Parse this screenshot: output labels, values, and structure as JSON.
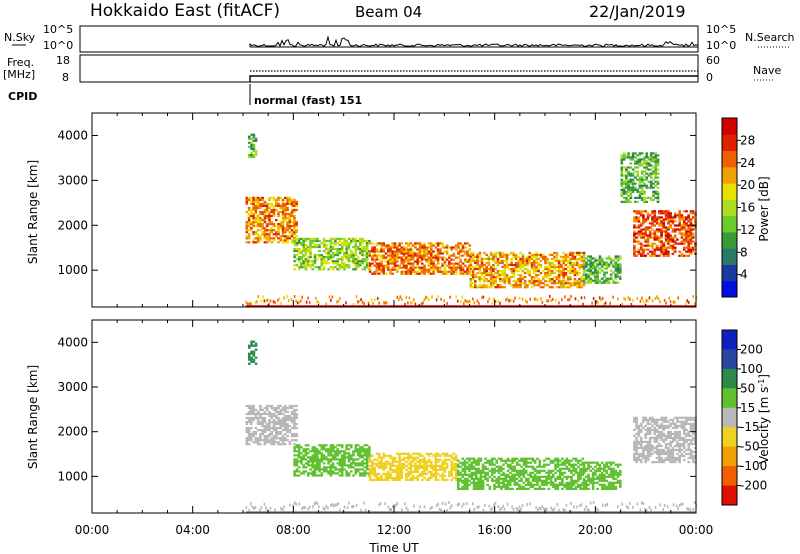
{
  "header": {
    "station": "Hokkaido East (fitACF)",
    "beam": "Beam 04",
    "date": "22/Jan/2019"
  },
  "param_panels": {
    "nsky_label": "N.Sky",
    "freq_label": "Freq.",
    "freq_unit": "[MHz]",
    "cpid_label": "CPID",
    "nsearch_label": "N.Search",
    "nave_label": "Nave",
    "nsky_ticks": [
      "10^5",
      "10^0"
    ],
    "nsearch_ticks": [
      "10^5",
      "10^0"
    ],
    "freq_ticks": [
      "18",
      "8"
    ],
    "nave_ticks": [
      "60",
      "0"
    ],
    "cpid_text": "normal (fast) 151"
  },
  "chart_data": [
    {
      "type": "heatmap",
      "name": "power",
      "ylabel": "Slant Range [km]",
      "xlabel": "",
      "ylim": [
        180,
        4500
      ],
      "yticks": [
        1000,
        2000,
        3000,
        4000
      ],
      "colorbar": {
        "label": "Power [dB]",
        "range": [
          0,
          32
        ],
        "tick_values": [
          4,
          8,
          12,
          16,
          20,
          24,
          28
        ],
        "tick_labels": [
          "4",
          "8",
          "12",
          "16",
          "20",
          "24",
          "28"
        ],
        "colors": [
          "#0010e0",
          "#1a3aa0",
          "#2a7a6a",
          "#3a9a3a",
          "#6acc2a",
          "#aadd22",
          "#e8e000",
          "#f0a000",
          "#f06000",
          "#e02000",
          "#d00000"
        ]
      },
      "regions": [
        {
          "t": [
            6.1,
            8.1
          ],
          "r": [
            1600,
            2600
          ],
          "value": 23
        },
        {
          "t": [
            6.2,
            6.5
          ],
          "r": [
            3500,
            4000
          ],
          "value": 12
        },
        {
          "t": [
            8.0,
            11.0
          ],
          "r": [
            1000,
            1700
          ],
          "value": 15
        },
        {
          "t": [
            11.0,
            15.0
          ],
          "r": [
            900,
            1600
          ],
          "value": 24
        },
        {
          "t": [
            15.0,
            19.5
          ],
          "r": [
            600,
            1400
          ],
          "value": 22
        },
        {
          "t": [
            19.5,
            21.0
          ],
          "r": [
            700,
            1300
          ],
          "value": 12
        },
        {
          "t": [
            21.5,
            24.0
          ],
          "r": [
            1300,
            2300
          ],
          "value": 26
        },
        {
          "t": [
            21.0,
            22.5
          ],
          "r": [
            2500,
            3600
          ],
          "value": 12
        }
      ]
    },
    {
      "type": "heatmap",
      "name": "velocity",
      "ylabel": "Slant Range [km]",
      "xlabel": "Time UT",
      "ylim": [
        180,
        4500
      ],
      "yticks": [
        1000,
        2000,
        3000,
        4000
      ],
      "xticks": [
        "00:00",
        "04:00",
        "08:00",
        "12:00",
        "16:00",
        "20:00",
        "00:00"
      ],
      "xlim_hours": [
        0,
        24
      ],
      "colorbar": {
        "label": "Velocity [m s^-1]",
        "tick_labels": [
          "200",
          "100",
          "50",
          "15",
          "-15",
          "-50",
          "-100",
          "-200"
        ],
        "colors": [
          "#1020c0",
          "#2848a0",
          "#2a8a4a",
          "#60c030",
          "#b8b8b8",
          "#f0d020",
          "#f0a000",
          "#f06000",
          "#e01000"
        ]
      },
      "regions": [
        {
          "t": [
            6.1,
            8.1
          ],
          "r": [
            1700,
            2600
          ],
          "value": 0
        },
        {
          "t": [
            6.2,
            6.5
          ],
          "r": [
            3500,
            4000
          ],
          "value": 60
        },
        {
          "t": [
            8.0,
            11.0
          ],
          "r": [
            1000,
            1700
          ],
          "value": 30
        },
        {
          "t": [
            11.0,
            14.5
          ],
          "r": [
            900,
            1500
          ],
          "value": -40
        },
        {
          "t": [
            14.5,
            19.5
          ],
          "r": [
            700,
            1400
          ],
          "value": 25
        },
        {
          "t": [
            19.5,
            21.0
          ],
          "r": [
            700,
            1300
          ],
          "value": 20
        },
        {
          "t": [
            21.5,
            24.0
          ],
          "r": [
            1300,
            2300
          ],
          "value": 0
        }
      ]
    }
  ]
}
